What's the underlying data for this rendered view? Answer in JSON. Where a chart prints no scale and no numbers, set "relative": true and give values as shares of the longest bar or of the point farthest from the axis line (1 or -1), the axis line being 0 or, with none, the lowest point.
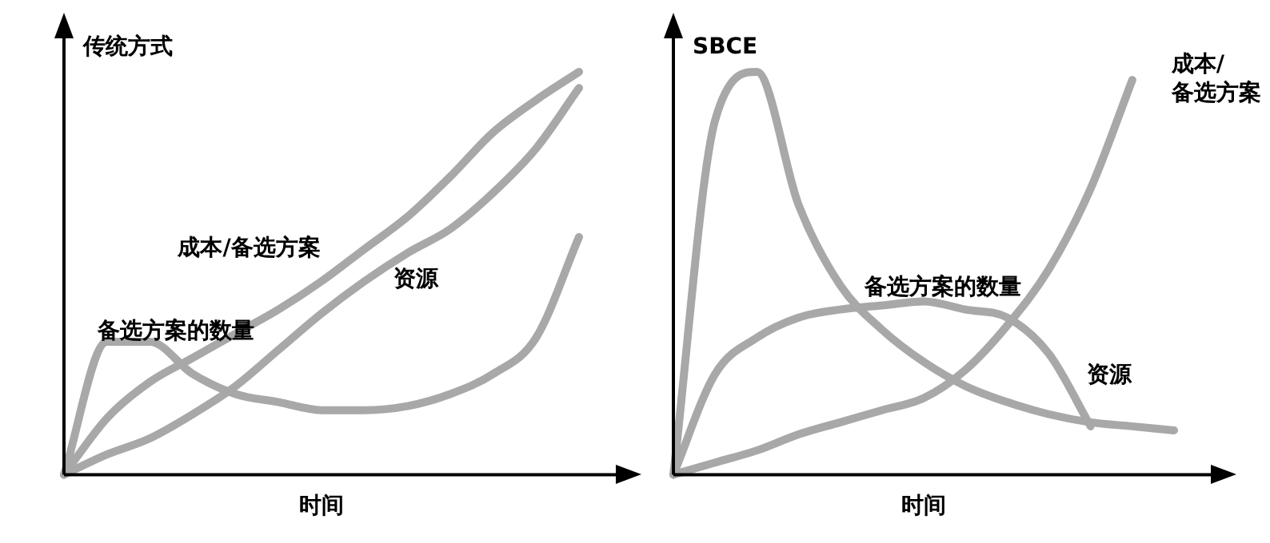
{
  "chart_data": [
    {
      "type": "line",
      "relative": true,
      "ylabel": "传统方式",
      "xlabel": "时间",
      "marker": "none",
      "legend": false,
      "grid": false,
      "categories": [
        null,
        null,
        null,
        null,
        null,
        null,
        null,
        null,
        null,
        null,
        null,
        null,
        null
      ],
      "series": [
        {
          "name": "成本/备选方案",
          "color": "#a8a8a8",
          "values": [
            0,
            0.14,
            0.23,
            0.29,
            0.35,
            0.41,
            0.48,
            0.56,
            0.64,
            0.74,
            0.85,
            0.93,
            1
          ]
        },
        {
          "name": "资源",
          "color": "#a8a8a8",
          "values": [
            0,
            0.05,
            0.09,
            0.15,
            0.22,
            0.31,
            0.4,
            0.48,
            0.55,
            0.61,
            0.7,
            0.81,
            0.96
          ]
        },
        {
          "name": "备选方案的数量",
          "color": "#a8a8a8",
          "values": [
            0,
            0.33,
            0.33,
            0.25,
            0.2,
            0.18,
            0.16,
            0.16,
            0.17,
            0.2,
            0.25,
            0.34,
            0.59
          ]
        }
      ]
    },
    {
      "type": "line",
      "relative": true,
      "ylabel": "SBCE",
      "xlabel": "时间",
      "marker": "none",
      "legend": false,
      "grid": false,
      "categories": [
        null,
        null,
        null,
        null,
        null,
        null,
        null,
        null,
        null,
        null,
        null,
        null,
        null
      ],
      "series": [
        {
          "name": "成本/备选方案",
          "color": "#a8a8a8",
          "values": [
            0,
            0.03,
            0.06,
            0.1,
            0.13,
            0.16,
            0.19,
            0.26,
            0.37,
            0.51,
            0.71,
            0.98,
            null
          ]
        },
        {
          "name": "资源",
          "color": "#a8a8a8",
          "values": [
            0,
            0.25,
            0.34,
            0.39,
            0.41,
            0.42,
            0.43,
            0.41,
            0.39,
            0.3,
            0.12,
            null,
            null
          ]
        },
        {
          "name": "备选方案的数量",
          "color": "#a8a8a8",
          "values": [
            0,
            0.88,
            1,
            0.67,
            0.47,
            0.36,
            0.28,
            0.22,
            0.18,
            0.15,
            0.13,
            0.12,
            0.11
          ]
        }
      ]
    }
  ]
}
